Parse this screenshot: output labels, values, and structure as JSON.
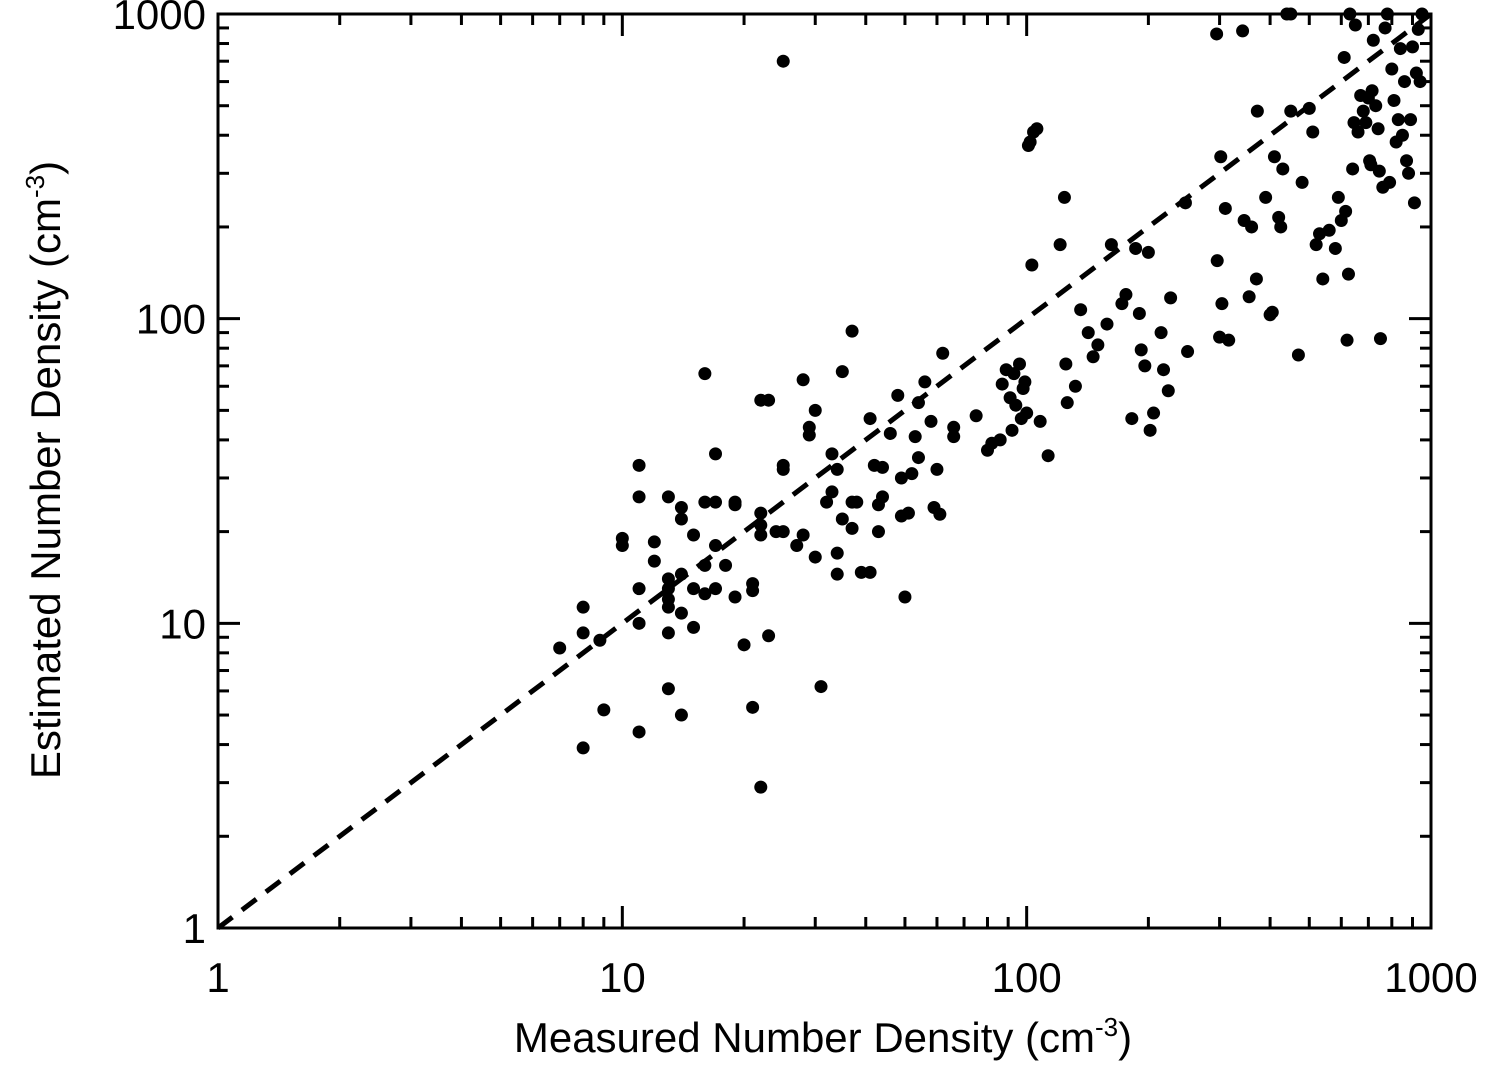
{
  "chart_data": {
    "type": "scatter",
    "color": "#000000",
    "log_x": true,
    "log_y": true,
    "xlabel": [
      "Measured Number Density (cm",
      "-3",
      ")"
    ],
    "ylabel": [
      "Estimated Number Density (cm",
      "-3",
      ")"
    ],
    "xlim": [
      1,
      1000
    ],
    "ylim": [
      1,
      1000
    ],
    "xticks": [
      1,
      10,
      100,
      1000
    ],
    "yticks": [
      1,
      10,
      100,
      1000
    ],
    "xminor_ticks": [
      2,
      3,
      4,
      5,
      6,
      7,
      8,
      9,
      20,
      30,
      40,
      50,
      60,
      70,
      80,
      90,
      200,
      300,
      400,
      500,
      600,
      700,
      800,
      900
    ],
    "yminor_ticks": [
      2,
      3,
      4,
      5,
      6,
      7,
      8,
      9,
      20,
      30,
      40,
      50,
      60,
      70,
      80,
      90,
      200,
      300,
      400,
      500,
      600,
      700,
      800,
      900
    ],
    "reference_line": {
      "x": [
        1,
        1000
      ],
      "y": [
        1,
        1000
      ],
      "style": "dashed"
    },
    "x": [
      7,
      8,
      8,
      8,
      8.8,
      9,
      10,
      10,
      11,
      11,
      11,
      11,
      11,
      12,
      12,
      13,
      13,
      13,
      13,
      13,
      13,
      13,
      14,
      14,
      14,
      14,
      14,
      15,
      15,
      15,
      16,
      16,
      16,
      16,
      17,
      17,
      17,
      17,
      18,
      19,
      19,
      19,
      20,
      21,
      21,
      21,
      22,
      22,
      22,
      22,
      22,
      23,
      23,
      24,
      25,
      25,
      25,
      25,
      27,
      28,
      28,
      29,
      29,
      30,
      30,
      31,
      32,
      33,
      33,
      34,
      34,
      34,
      35,
      35,
      37,
      37,
      37,
      38,
      39,
      41,
      41,
      42,
      43,
      43,
      44,
      44,
      46,
      48,
      49,
      49,
      50,
      51,
      52,
      53,
      54,
      54,
      56,
      58,
      59,
      60,
      61,
      62,
      66,
      66,
      75,
      80,
      82,
      86,
      87,
      89,
      91,
      92,
      93,
      94,
      96,
      97,
      98,
      99,
      100,
      101,
      102,
      103,
      104,
      106,
      108,
      113,
      121,
      124,
      125,
      126,
      132,
      136,
      142,
      146,
      150,
      158,
      162,
      172,
      176,
      182,
      186,
      190,
      192,
      196,
      200,
      202,
      206,
      215,
      218,
      224,
      227,
      247,
      250,
      295,
      296,
      300,
      302,
      304,
      310,
      316,
      342,
      345,
      355,
      360,
      370,
      372,
      390,
      400,
      405,
      410,
      420,
      425,
      430,
      440,
      450,
      450,
      470,
      480,
      500,
      510,
      520,
      530,
      540,
      560,
      580,
      590,
      600,
      610,
      615,
      620,
      625,
      630,
      640,
      645,
      650,
      660,
      670,
      680,
      690,
      700,
      705,
      710,
      715,
      720,
      730,
      740,
      745,
      750,
      760,
      770,
      780,
      790,
      800,
      810,
      820,
      830,
      840,
      850,
      860,
      870,
      880,
      890,
      900,
      910,
      920,
      930,
      940,
      950
    ],
    "values": [
      8.3,
      11.3,
      9.3,
      3.9,
      8.8,
      5.2,
      19,
      18,
      33,
      26,
      13,
      10,
      4.4,
      18.5,
      16,
      26,
      14,
      13,
      12,
      11.3,
      9.3,
      6.1,
      24,
      22,
      14.5,
      10.8,
      5,
      19.5,
      13,
      9.7,
      66,
      25,
      15.5,
      12.5,
      36,
      25,
      18,
      13,
      15.5,
      25,
      24.5,
      12.2,
      8.5,
      13.5,
      12.8,
      5.3,
      54,
      23,
      21,
      19.5,
      2.9,
      54,
      9.1,
      20,
      700,
      33,
      32,
      20,
      18,
      63,
      19.5,
      44,
      41.5,
      50,
      16.5,
      6.2,
      25,
      36,
      27,
      32,
      17,
      14.5,
      67,
      22,
      91,
      20.5,
      25,
      25,
      14.7,
      14.7,
      47,
      33,
      24.5,
      20,
      32.5,
      26,
      42,
      56,
      30,
      22.5,
      12.2,
      23,
      31,
      41,
      53,
      35,
      62,
      46,
      24,
      32,
      22.8,
      77,
      44,
      41,
      48,
      37,
      39,
      40,
      61,
      68,
      55,
      43,
      66,
      52,
      71,
      47,
      59,
      62,
      49,
      370,
      380,
      150,
      410,
      420,
      46,
      35.5,
      175,
      250,
      71,
      53,
      60,
      107,
      90,
      75,
      82,
      96,
      175,
      112,
      120,
      47,
      170,
      104,
      79,
      70,
      165,
      43,
      49,
      90,
      68,
      58,
      117,
      240,
      78,
      860,
      155,
      87,
      340,
      112,
      230,
      85,
      880,
      210,
      118,
      200,
      135,
      480,
      250,
      103,
      105,
      340,
      215,
      200,
      310,
      1000,
      1000,
      480,
      76,
      280,
      490,
      410,
      175,
      190,
      135,
      195,
      170,
      250,
      210,
      720,
      225,
      85,
      140,
      1000,
      310,
      440,
      920,
      410,
      540,
      480,
      440,
      530,
      330,
      320,
      560,
      820,
      500,
      420,
      305,
      86,
      270,
      900,
      1000,
      280,
      660,
      520,
      380,
      450,
      770,
      400,
      600,
      330,
      300,
      450,
      780,
      240,
      640,
      890,
      600,
      1000
    ]
  }
}
